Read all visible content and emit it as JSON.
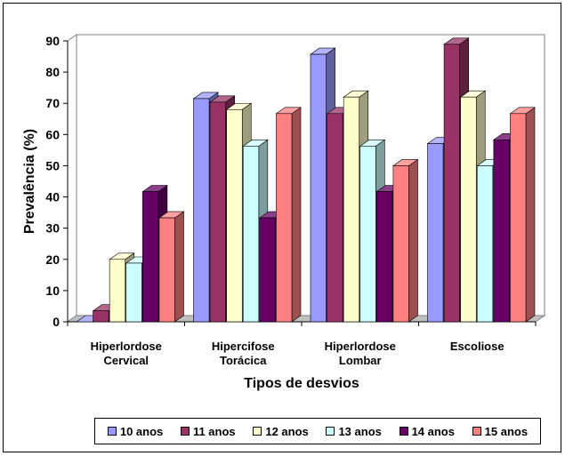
{
  "chart_data": {
    "type": "bar",
    "ylabel": "Prevalência (%)",
    "xlabel": "Tipos de desvios",
    "ylim": [
      0,
      90
    ],
    "yticks": [
      0,
      10,
      20,
      30,
      40,
      50,
      60,
      70,
      80,
      90
    ],
    "categories": [
      [
        "Hiperlordose",
        "Cervical"
      ],
      [
        "Hipercifose",
        "Torácica"
      ],
      [
        "Hiperlordose",
        "Lombar"
      ],
      [
        "Escoliose"
      ]
    ],
    "series": [
      {
        "name": "10 anos",
        "color": "#9999FF",
        "values": [
          0,
          71.5,
          85.7,
          57.1
        ]
      },
      {
        "name": "11 anos",
        "color": "#993366",
        "values": [
          3.5,
          70.4,
          66.7,
          88.9
        ]
      },
      {
        "name": "12 anos",
        "color": "#FFFFCC",
        "values": [
          20,
          68,
          72,
          72
        ]
      },
      {
        "name": "13 anos",
        "color": "#CCFFFF",
        "values": [
          18.8,
          56.3,
          56.3,
          50
        ]
      },
      {
        "name": "14 anos",
        "color": "#660066",
        "values": [
          41.7,
          33.3,
          41.7,
          58.3
        ]
      },
      {
        "name": "15 anos",
        "color": "#FF8080",
        "values": [
          33.3,
          66.7,
          50,
          66.7
        ]
      }
    ],
    "grid": false,
    "legend_position": "bottom"
  }
}
